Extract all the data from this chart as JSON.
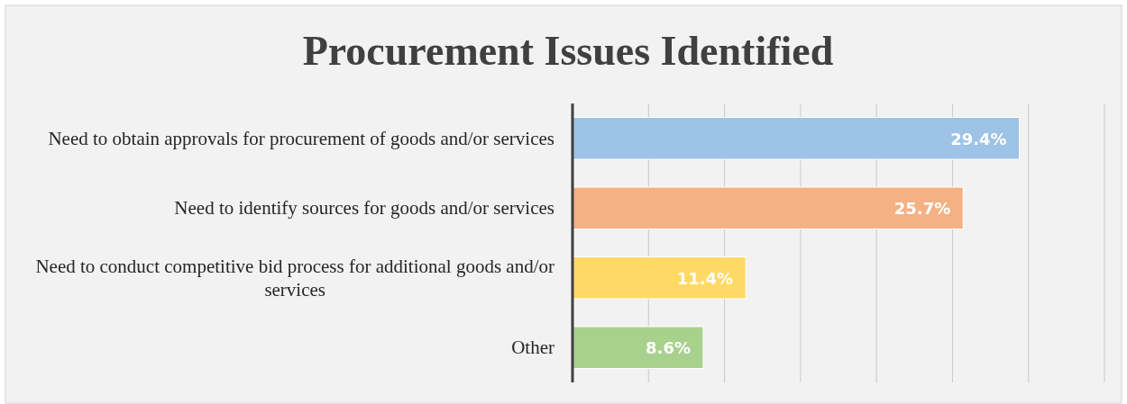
{
  "chart_data": {
    "type": "bar",
    "orientation": "horizontal",
    "title": "Procurement Issues Identified",
    "categories": [
      "Need to obtain approvals for procurement of goods and/or services",
      "Need to identify sources for goods and/or services",
      "Need to conduct competitive bid process for additional goods and/or services",
      "Other"
    ],
    "values": [
      29.4,
      25.7,
      11.4,
      8.6
    ],
    "colors": [
      "#9dc3e6",
      "#f4b183",
      "#ffd966",
      "#a9d18e"
    ],
    "value_labels": [
      "29.4%",
      "25.7%",
      "11.4%",
      "8.6%"
    ],
    "xlim": [
      0,
      35
    ],
    "xticks": [
      {
        "value": 0,
        "label": null
      },
      {
        "value": 5,
        "label": null
      },
      {
        "value": 10,
        "label": null
      },
      {
        "value": 15,
        "label": null
      },
      {
        "value": 20,
        "label": null
      },
      {
        "value": 25,
        "label": null
      },
      {
        "value": 30,
        "label": null
      },
      {
        "value": 35,
        "label": null
      }
    ],
    "tick_labels": "y",
    "grid": "x"
  }
}
